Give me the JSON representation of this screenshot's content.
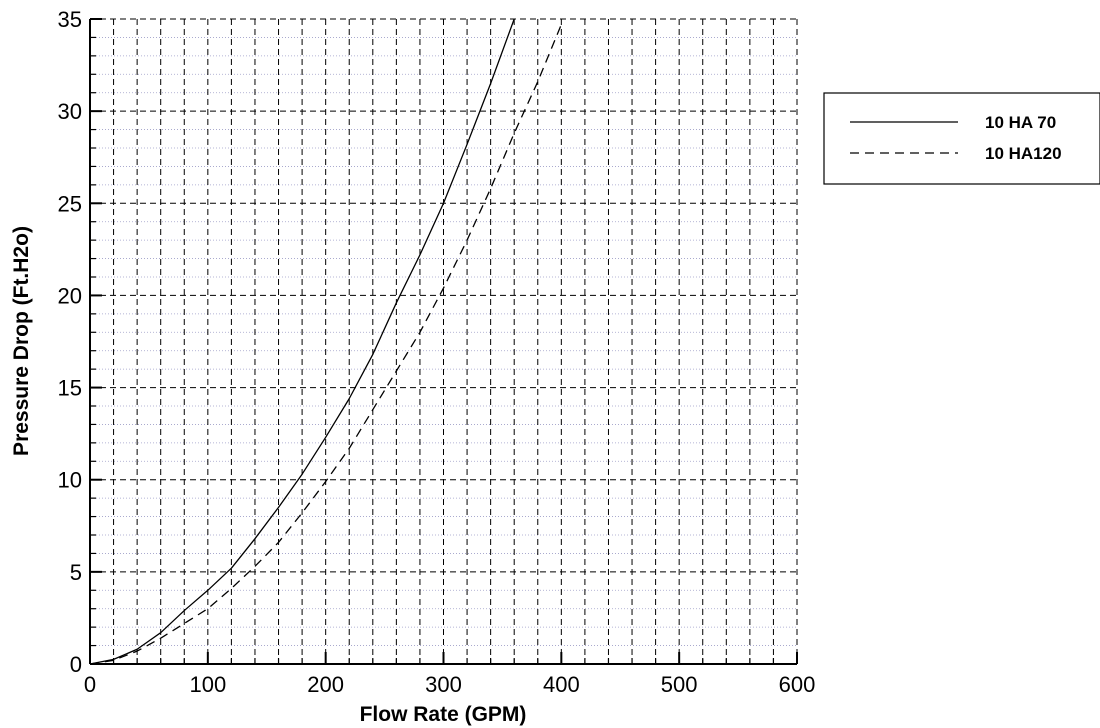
{
  "chart_data": {
    "type": "line",
    "title": "",
    "xlabel": "Flow Rate (GPM)",
    "ylabel": "Pressure Drop (Ft.H2o)",
    "xlim": [
      0,
      600
    ],
    "ylim": [
      0,
      35
    ],
    "x_ticks": [
      "0",
      "100",
      "200",
      "300",
      "400",
      "500",
      "600"
    ],
    "y_ticks": [
      "0",
      "5",
      "10",
      "15",
      "20",
      "25",
      "30",
      "35"
    ],
    "x_major_step": 100,
    "x_grid_step": 20,
    "y_major_step": 5,
    "y_minor_step": 1,
    "grid": true,
    "legend_position": "right",
    "series": [
      {
        "name": "10 HA 70",
        "line_style": "solid",
        "color": "#000000",
        "x": [
          0,
          20,
          40,
          60,
          80,
          100,
          120,
          140,
          160,
          180,
          200,
          220,
          240,
          260,
          280,
          300,
          320,
          340,
          360
        ],
        "y": [
          0,
          0.25,
          0.8,
          1.7,
          2.9,
          4.0,
          5.2,
          6.8,
          8.5,
          10.3,
          12.3,
          14.4,
          16.8,
          19.6,
          22.2,
          25.0,
          28.2,
          31.5,
          35.0
        ]
      },
      {
        "name": "10 HA120",
        "line_style": "dashed",
        "color": "#000000",
        "x": [
          0,
          20,
          40,
          60,
          80,
          100,
          120,
          140,
          160,
          180,
          200,
          220,
          240,
          260,
          280,
          300,
          320,
          340,
          360,
          380,
          400
        ],
        "y": [
          0,
          0.2,
          0.7,
          1.4,
          2.2,
          3.0,
          4.1,
          5.3,
          6.6,
          8.2,
          9.9,
          11.7,
          13.8,
          15.9,
          18.0,
          20.4,
          23.0,
          25.8,
          28.8,
          31.6,
          34.7
        ]
      }
    ]
  }
}
